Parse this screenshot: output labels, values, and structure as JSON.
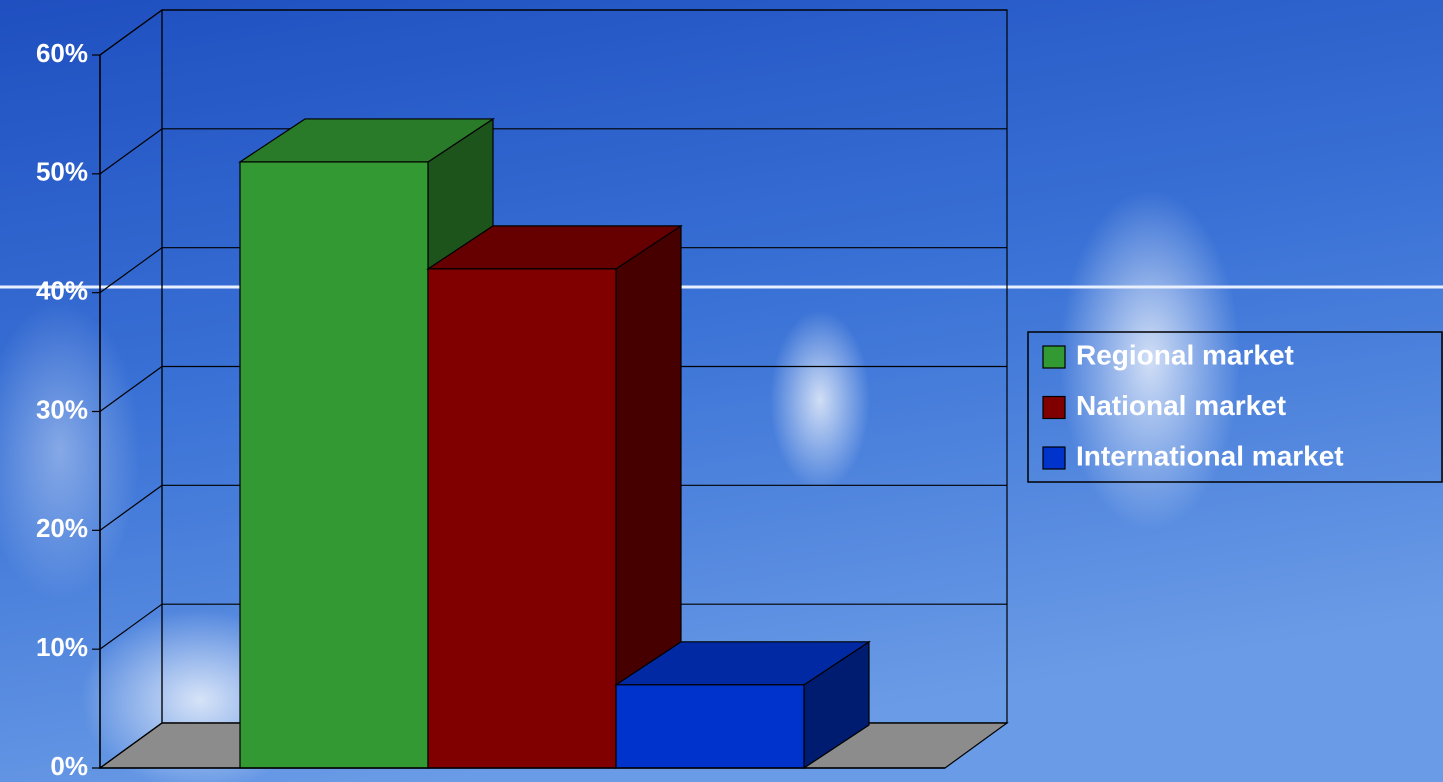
{
  "chart_data": {
    "type": "bar",
    "categories": [
      "Regional market",
      "National market",
      "International market"
    ],
    "values": [
      51,
      42,
      7
    ],
    "colors": [
      "#339933",
      "#800000",
      "#0033cc"
    ],
    "ylim": [
      0,
      60
    ],
    "yticks": [
      {
        "value": 0,
        "label": "0%"
      },
      {
        "value": 10,
        "label": "10%"
      },
      {
        "value": 20,
        "label": "20%"
      },
      {
        "value": 30,
        "label": "30%"
      },
      {
        "value": 40,
        "label": "40%"
      },
      {
        "value": 50,
        "label": "50%"
      },
      {
        "value": 60,
        "label": "60%"
      }
    ],
    "grid": true,
    "legend": "right"
  }
}
